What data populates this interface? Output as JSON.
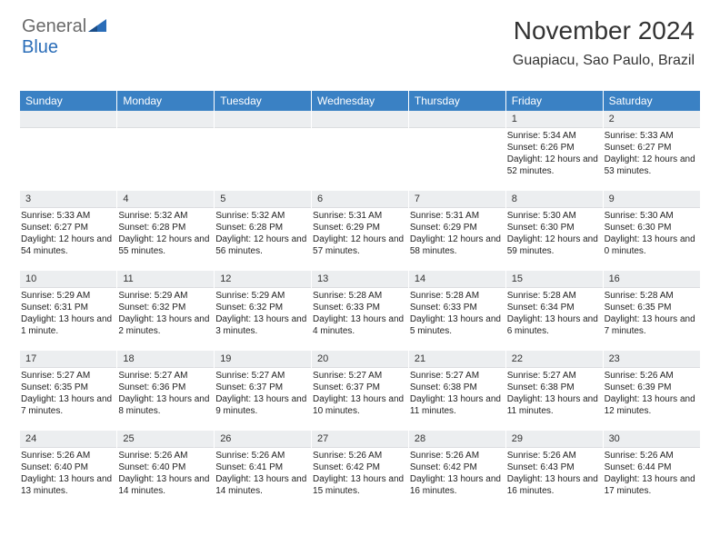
{
  "logo": {
    "part1": "General",
    "part2": "Blue"
  },
  "title": "November 2024",
  "location": "Guapiacu, Sao Paulo, Brazil",
  "colors": {
    "header_bg": "#3a81c4",
    "header_text": "#ffffff",
    "daynum_bg": "#eceef0",
    "logo_gray": "#6a6a6a",
    "logo_blue": "#2a6db8"
  },
  "day_headers": [
    "Sunday",
    "Monday",
    "Tuesday",
    "Wednesday",
    "Thursday",
    "Friday",
    "Saturday"
  ],
  "weeks": [
    [
      {
        "blank": true
      },
      {
        "blank": true
      },
      {
        "blank": true
      },
      {
        "blank": true
      },
      {
        "blank": true
      },
      {
        "n": "1",
        "sr": "5:34 AM",
        "ss": "6:26 PM",
        "dl": "12 hours and 52 minutes."
      },
      {
        "n": "2",
        "sr": "5:33 AM",
        "ss": "6:27 PM",
        "dl": "12 hours and 53 minutes."
      }
    ],
    [
      {
        "n": "3",
        "sr": "5:33 AM",
        "ss": "6:27 PM",
        "dl": "12 hours and 54 minutes."
      },
      {
        "n": "4",
        "sr": "5:32 AM",
        "ss": "6:28 PM",
        "dl": "12 hours and 55 minutes."
      },
      {
        "n": "5",
        "sr": "5:32 AM",
        "ss": "6:28 PM",
        "dl": "12 hours and 56 minutes."
      },
      {
        "n": "6",
        "sr": "5:31 AM",
        "ss": "6:29 PM",
        "dl": "12 hours and 57 minutes."
      },
      {
        "n": "7",
        "sr": "5:31 AM",
        "ss": "6:29 PM",
        "dl": "12 hours and 58 minutes."
      },
      {
        "n": "8",
        "sr": "5:30 AM",
        "ss": "6:30 PM",
        "dl": "12 hours and 59 minutes."
      },
      {
        "n": "9",
        "sr": "5:30 AM",
        "ss": "6:30 PM",
        "dl": "13 hours and 0 minutes."
      }
    ],
    [
      {
        "n": "10",
        "sr": "5:29 AM",
        "ss": "6:31 PM",
        "dl": "13 hours and 1 minute."
      },
      {
        "n": "11",
        "sr": "5:29 AM",
        "ss": "6:32 PM",
        "dl": "13 hours and 2 minutes."
      },
      {
        "n": "12",
        "sr": "5:29 AM",
        "ss": "6:32 PM",
        "dl": "13 hours and 3 minutes."
      },
      {
        "n": "13",
        "sr": "5:28 AM",
        "ss": "6:33 PM",
        "dl": "13 hours and 4 minutes."
      },
      {
        "n": "14",
        "sr": "5:28 AM",
        "ss": "6:33 PM",
        "dl": "13 hours and 5 minutes."
      },
      {
        "n": "15",
        "sr": "5:28 AM",
        "ss": "6:34 PM",
        "dl": "13 hours and 6 minutes."
      },
      {
        "n": "16",
        "sr": "5:28 AM",
        "ss": "6:35 PM",
        "dl": "13 hours and 7 minutes."
      }
    ],
    [
      {
        "n": "17",
        "sr": "5:27 AM",
        "ss": "6:35 PM",
        "dl": "13 hours and 7 minutes."
      },
      {
        "n": "18",
        "sr": "5:27 AM",
        "ss": "6:36 PM",
        "dl": "13 hours and 8 minutes."
      },
      {
        "n": "19",
        "sr": "5:27 AM",
        "ss": "6:37 PM",
        "dl": "13 hours and 9 minutes."
      },
      {
        "n": "20",
        "sr": "5:27 AM",
        "ss": "6:37 PM",
        "dl": "13 hours and 10 minutes."
      },
      {
        "n": "21",
        "sr": "5:27 AM",
        "ss": "6:38 PM",
        "dl": "13 hours and 11 minutes."
      },
      {
        "n": "22",
        "sr": "5:27 AM",
        "ss": "6:38 PM",
        "dl": "13 hours and 11 minutes."
      },
      {
        "n": "23",
        "sr": "5:26 AM",
        "ss": "6:39 PM",
        "dl": "13 hours and 12 minutes."
      }
    ],
    [
      {
        "n": "24",
        "sr": "5:26 AM",
        "ss": "6:40 PM",
        "dl": "13 hours and 13 minutes."
      },
      {
        "n": "25",
        "sr": "5:26 AM",
        "ss": "6:40 PM",
        "dl": "13 hours and 14 minutes."
      },
      {
        "n": "26",
        "sr": "5:26 AM",
        "ss": "6:41 PM",
        "dl": "13 hours and 14 minutes."
      },
      {
        "n": "27",
        "sr": "5:26 AM",
        "ss": "6:42 PM",
        "dl": "13 hours and 15 minutes."
      },
      {
        "n": "28",
        "sr": "5:26 AM",
        "ss": "6:42 PM",
        "dl": "13 hours and 16 minutes."
      },
      {
        "n": "29",
        "sr": "5:26 AM",
        "ss": "6:43 PM",
        "dl": "13 hours and 16 minutes."
      },
      {
        "n": "30",
        "sr": "5:26 AM",
        "ss": "6:44 PM",
        "dl": "13 hours and 17 minutes."
      }
    ]
  ],
  "labels": {
    "sunrise": "Sunrise:",
    "sunset": "Sunset:",
    "daylight": "Daylight:"
  }
}
